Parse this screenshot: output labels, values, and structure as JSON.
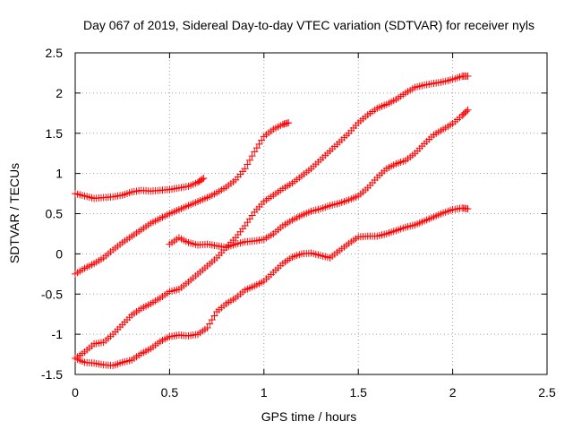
{
  "chart_data": {
    "type": "scatter",
    "title": "Day 067 of 2019, Sidereal Day-to-day VTEC variation (SDTVAR) for receiver nyls",
    "xlabel": "GPS time / hours",
    "ylabel": "SDTVAR / TECUs",
    "xlim": [
      0,
      2.5
    ],
    "ylim": [
      -1.5,
      2.5
    ],
    "xticks": [
      "0",
      "0.5",
      "1",
      "1.5",
      "2",
      "2.5"
    ],
    "yticks": [
      "-1.5",
      "-1",
      "-0.5",
      "0",
      "0.5",
      "1",
      "1.5",
      "2",
      "2.5"
    ],
    "grid": true,
    "marker": "+",
    "color": "#ff0000",
    "series": [
      {
        "points": [
          [
            0,
            0.75
          ],
          [
            0.05,
            0.72
          ],
          [
            0.1,
            0.69
          ],
          [
            0.15,
            0.7
          ],
          [
            0.2,
            0.71
          ],
          [
            0.25,
            0.73
          ],
          [
            0.3,
            0.77
          ],
          [
            0.35,
            0.79
          ],
          [
            0.4,
            0.78
          ],
          [
            0.45,
            0.79
          ],
          [
            0.5,
            0.8
          ],
          [
            0.55,
            0.82
          ],
          [
            0.6,
            0.84
          ],
          [
            0.65,
            0.89
          ],
          [
            0.68,
            0.94
          ]
        ]
      },
      {
        "points": [
          [
            0,
            -0.25
          ],
          [
            0.05,
            -0.18
          ],
          [
            0.1,
            -0.12
          ],
          [
            0.15,
            -0.05
          ],
          [
            0.2,
            0.05
          ],
          [
            0.25,
            0.14
          ],
          [
            0.3,
            0.22
          ],
          [
            0.35,
            0.3
          ],
          [
            0.4,
            0.38
          ],
          [
            0.45,
            0.44
          ],
          [
            0.5,
            0.5
          ],
          [
            0.55,
            0.55
          ],
          [
            0.6,
            0.6
          ],
          [
            0.65,
            0.65
          ],
          [
            0.7,
            0.7
          ],
          [
            0.75,
            0.76
          ],
          [
            0.8,
            0.83
          ],
          [
            0.85,
            0.92
          ],
          [
            0.9,
            1.06
          ],
          [
            0.95,
            1.27
          ],
          [
            1.0,
            1.46
          ],
          [
            1.05,
            1.55
          ],
          [
            1.1,
            1.61
          ],
          [
            1.13,
            1.63
          ]
        ]
      },
      {
        "points": [
          [
            0.5,
            0.12
          ],
          [
            0.55,
            0.2
          ],
          [
            0.6,
            0.14
          ],
          [
            0.65,
            0.11
          ],
          [
            0.7,
            0.12
          ],
          [
            0.75,
            0.1
          ],
          [
            0.8,
            0.08
          ],
          [
            0.85,
            0.12
          ],
          [
            0.9,
            0.15
          ],
          [
            0.95,
            0.16
          ],
          [
            1.0,
            0.18
          ],
          [
            1.05,
            0.25
          ],
          [
            1.1,
            0.35
          ],
          [
            1.15,
            0.42
          ],
          [
            1.2,
            0.48
          ],
          [
            1.25,
            0.53
          ],
          [
            1.3,
            0.56
          ],
          [
            1.35,
            0.6
          ],
          [
            1.4,
            0.63
          ],
          [
            1.45,
            0.67
          ],
          [
            1.5,
            0.72
          ],
          [
            1.55,
            0.82
          ],
          [
            1.6,
            0.95
          ],
          [
            1.65,
            1.06
          ],
          [
            1.7,
            1.12
          ],
          [
            1.75,
            1.16
          ],
          [
            1.8,
            1.25
          ],
          [
            1.85,
            1.37
          ],
          [
            1.9,
            1.48
          ],
          [
            1.95,
            1.55
          ],
          [
            2.0,
            1.62
          ],
          [
            2.05,
            1.72
          ],
          [
            2.08,
            1.79
          ]
        ]
      },
      {
        "points": [
          [
            0,
            -1.3
          ],
          [
            0.05,
            -1.22
          ],
          [
            0.1,
            -1.12
          ],
          [
            0.15,
            -1.1
          ],
          [
            0.2,
            -1.0
          ],
          [
            0.25,
            -0.88
          ],
          [
            0.3,
            -0.76
          ],
          [
            0.35,
            -0.68
          ],
          [
            0.4,
            -0.62
          ],
          [
            0.45,
            -0.55
          ],
          [
            0.5,
            -0.47
          ],
          [
            0.55,
            -0.44
          ],
          [
            0.6,
            -0.35
          ],
          [
            0.65,
            -0.25
          ],
          [
            0.7,
            -0.15
          ],
          [
            0.75,
            -0.05
          ],
          [
            0.8,
            0.08
          ],
          [
            0.85,
            0.2
          ],
          [
            0.9,
            0.35
          ],
          [
            0.95,
            0.52
          ],
          [
            1.0,
            0.65
          ],
          [
            1.05,
            0.73
          ],
          [
            1.1,
            0.81
          ],
          [
            1.15,
            0.88
          ],
          [
            1.2,
            0.97
          ],
          [
            1.25,
            1.06
          ],
          [
            1.3,
            1.17
          ],
          [
            1.35,
            1.28
          ],
          [
            1.4,
            1.39
          ],
          [
            1.45,
            1.5
          ],
          [
            1.5,
            1.63
          ],
          [
            1.55,
            1.73
          ],
          [
            1.6,
            1.81
          ],
          [
            1.65,
            1.86
          ],
          [
            1.7,
            1.92
          ],
          [
            1.75,
            2.0
          ],
          [
            1.8,
            2.07
          ],
          [
            1.85,
            2.1
          ],
          [
            1.9,
            2.12
          ],
          [
            1.95,
            2.14
          ],
          [
            2.0,
            2.17
          ],
          [
            2.05,
            2.21
          ],
          [
            2.08,
            2.21
          ]
        ]
      },
      {
        "points": [
          [
            0,
            -1.3
          ],
          [
            0.05,
            -1.35
          ],
          [
            0.1,
            -1.36
          ],
          [
            0.15,
            -1.38
          ],
          [
            0.2,
            -1.39
          ],
          [
            0.25,
            -1.35
          ],
          [
            0.3,
            -1.32
          ],
          [
            0.35,
            -1.24
          ],
          [
            0.4,
            -1.18
          ],
          [
            0.45,
            -1.09
          ],
          [
            0.5,
            -1.03
          ],
          [
            0.55,
            -1.01
          ],
          [
            0.6,
            -1.02
          ],
          [
            0.65,
            -1.0
          ],
          [
            0.7,
            -0.92
          ],
          [
            0.75,
            -0.72
          ],
          [
            0.8,
            -0.62
          ],
          [
            0.85,
            -0.55
          ],
          [
            0.9,
            -0.45
          ],
          [
            0.95,
            -0.4
          ],
          [
            1.0,
            -0.34
          ],
          [
            1.05,
            -0.23
          ],
          [
            1.1,
            -0.12
          ],
          [
            1.15,
            -0.04
          ],
          [
            1.2,
            0.0
          ],
          [
            1.25,
            0.01
          ],
          [
            1.3,
            -0.02
          ],
          [
            1.35,
            -0.05
          ],
          [
            1.4,
            0.04
          ],
          [
            1.45,
            0.13
          ],
          [
            1.5,
            0.21
          ],
          [
            1.55,
            0.22
          ],
          [
            1.6,
            0.22
          ],
          [
            1.65,
            0.25
          ],
          [
            1.7,
            0.29
          ],
          [
            1.75,
            0.33
          ],
          [
            1.8,
            0.36
          ],
          [
            1.85,
            0.41
          ],
          [
            1.9,
            0.46
          ],
          [
            1.95,
            0.51
          ],
          [
            2.0,
            0.55
          ],
          [
            2.05,
            0.57
          ],
          [
            2.08,
            0.56
          ]
        ]
      }
    ]
  }
}
